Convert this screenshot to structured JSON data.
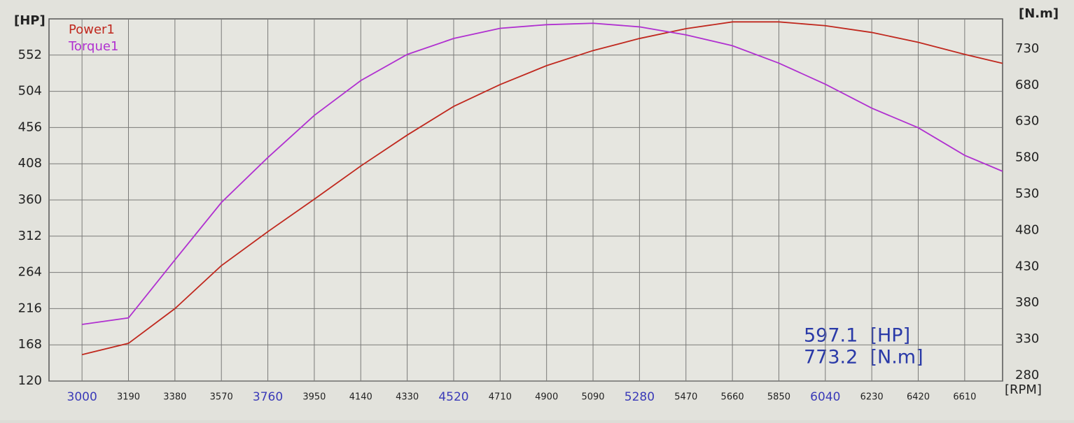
{
  "chart_data": {
    "type": "line",
    "x_label": "[RPM]",
    "y_label": "[HP]",
    "y2_label": "[N.m]",
    "x": [
      3000,
      3190,
      3380,
      3570,
      3760,
      3950,
      4140,
      4330,
      4520,
      4710,
      4900,
      5090,
      5280,
      5470,
      5660,
      5850,
      6040,
      6230,
      6420,
      6610,
      6765
    ],
    "series": [
      {
        "name": "Power1",
        "color": "#c0281e",
        "axis": "y",
        "values": [
          155,
          170,
          216,
          273,
          318,
          361,
          405,
          446,
          484,
          513,
          538,
          558,
          574,
          587,
          596,
          596,
          591,
          582,
          569,
          553,
          541
        ]
      },
      {
        "name": "Torque1",
        "color": "#b030d0",
        "axis": "y2",
        "values": [
          358,
          367,
          447,
          526,
          588,
          646,
          694,
          730,
          752,
          766,
          771,
          773,
          768,
          757,
          742,
          718,
          689,
          656,
          629,
          591,
          569
        ]
      }
    ],
    "xlim": [
      2865,
      6765
    ],
    "xticks": [
      3000,
      3190,
      3380,
      3570,
      3760,
      3950,
      4140,
      4330,
      4520,
      4710,
      4900,
      5090,
      5280,
      5470,
      5660,
      5850,
      6040,
      6230,
      6420,
      6610
    ],
    "ylim": [
      120,
      600
    ],
    "yticks": [
      120,
      168,
      216,
      264,
      312,
      360,
      408,
      456,
      504,
      552
    ],
    "y2lim": [
      280,
      779
    ],
    "y2ticks": [
      280,
      330,
      380,
      430,
      480,
      530,
      580,
      630,
      680,
      730
    ],
    "grid": true,
    "legend": "top-left",
    "annotations": [
      "597.1  [HP]",
      "773.2  [N.m]"
    ]
  }
}
